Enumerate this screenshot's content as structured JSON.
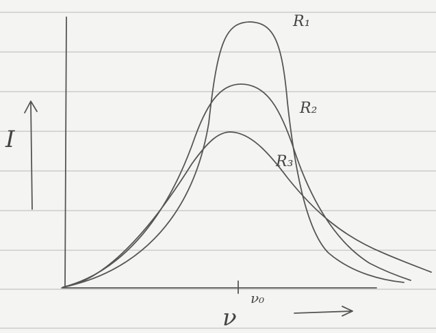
{
  "axes": {
    "y_label": "I",
    "x_label": "ν",
    "tick_label": "ν₀"
  },
  "curves": [
    {
      "label": "R₁"
    },
    {
      "label": "R₂"
    },
    {
      "label": "R₃"
    }
  ]
}
